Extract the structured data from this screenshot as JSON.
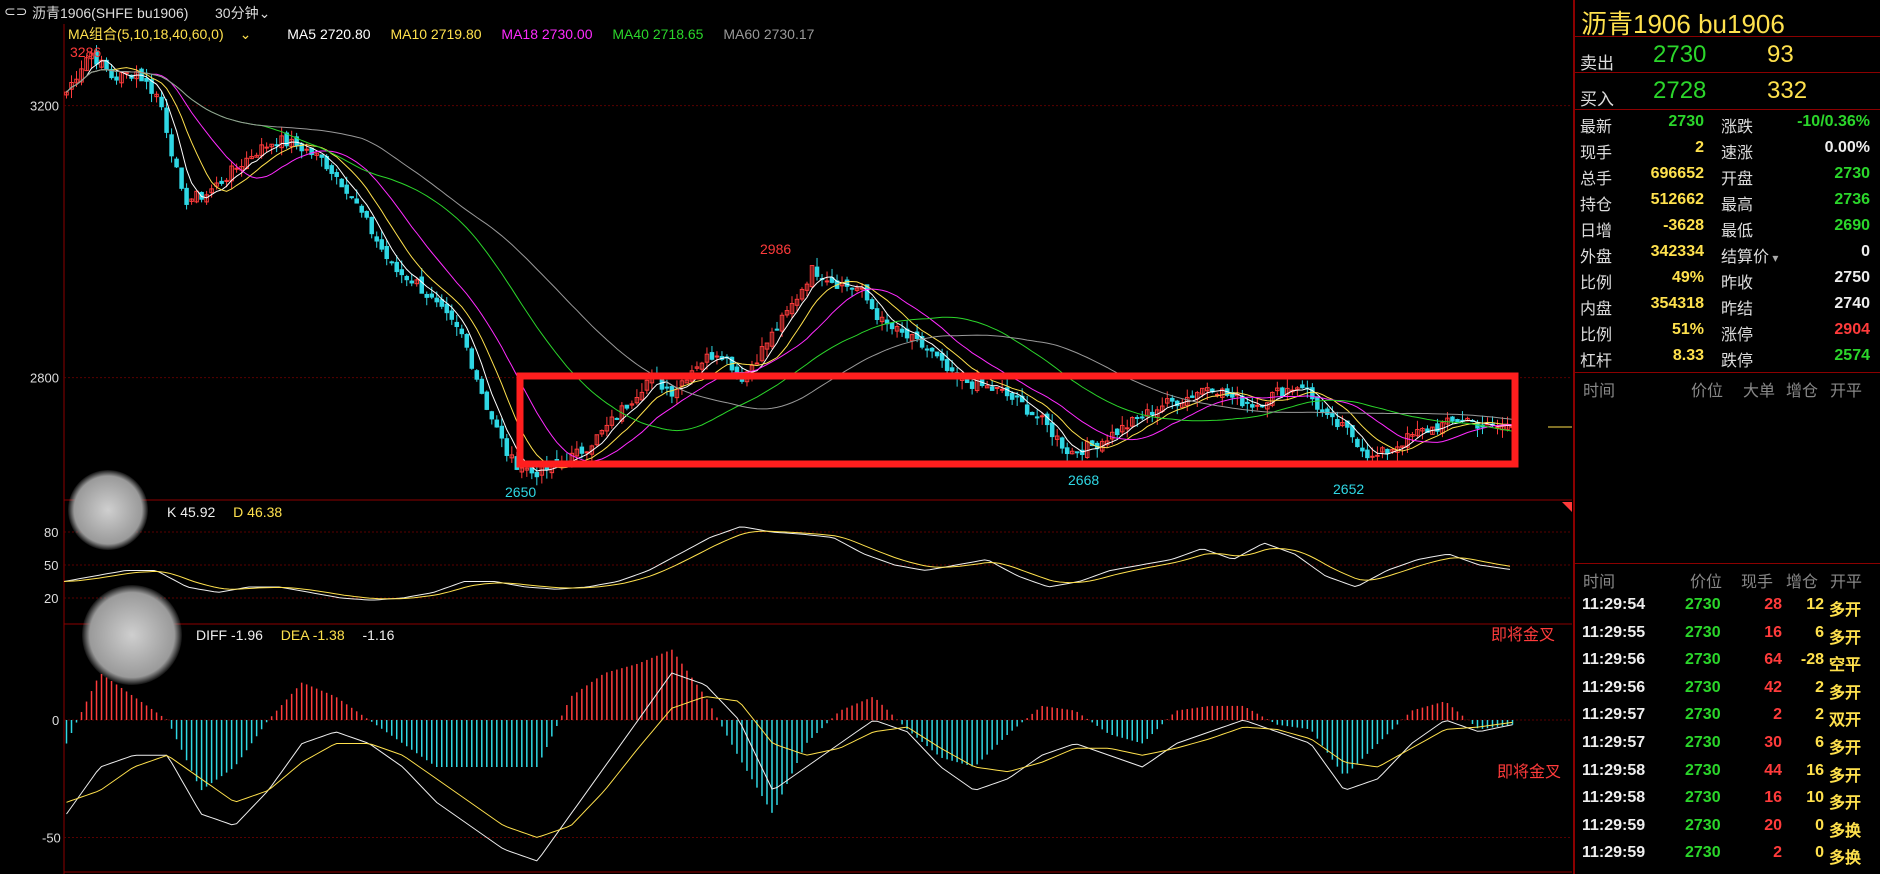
{
  "window": {
    "title": "沥青1906(SHFE bu1906)",
    "period": "30分钟"
  },
  "ma_legend": {
    "name": "MA组合(5,10,18,40,60,0)",
    "items": [
      {
        "label": "MA5 2720.80",
        "color": "#ffffff"
      },
      {
        "label": "MA10 2719.80",
        "color": "#ffe14d"
      },
      {
        "label": "MA18 2730.00",
        "color": "#ff2bff"
      },
      {
        "label": "MA40 2718.65",
        "color": "#2bd62b"
      },
      {
        "label": "MA60 2730.17",
        "color": "#999999"
      }
    ]
  },
  "kdj_legend": {
    "k": "K 45.92",
    "d": "D 46.38"
  },
  "macd_legend": {
    "diff": "DIFF -1.96",
    "dea": "DEA -1.38",
    "macd": "-1.16"
  },
  "axis": {
    "price_ticks": [
      "3200",
      "2800"
    ],
    "kd_ticks": [
      "80",
      "50",
      "20"
    ],
    "macd_ticks": [
      "0",
      "-50"
    ]
  },
  "annotations": {
    "high1": "3286",
    "high2": "2986",
    "low1": "2650",
    "low2": "2668",
    "low3": "2652",
    "signal_kd": "即将金叉",
    "signal_macd": "即将金叉"
  },
  "chart_data": {
    "type": "candlestick",
    "y_range": [
      2620,
      3320
    ],
    "key_points": [
      {
        "label": "3286",
        "price": 3286
      },
      {
        "label": "2986",
        "price": 2986
      },
      {
        "label": "2650",
        "price": 2650
      },
      {
        "label": "2668",
        "price": 2668
      },
      {
        "label": "2652",
        "price": 2652
      }
    ],
    "close_path": [
      3220,
      3280,
      3240,
      3250,
      3210,
      3060,
      3070,
      3100,
      3130,
      3150,
      3140,
      3120,
      3080,
      3020,
      2960,
      2940,
      2900,
      2860,
      2760,
      2680,
      2660,
      2670,
      2690,
      2720,
      2760,
      2800,
      2780,
      2820,
      2840,
      2800,
      2850,
      2900,
      2960,
      2940,
      2930,
      2880,
      2860,
      2840,
      2800,
      2790,
      2780,
      2760,
      2730,
      2690,
      2700,
      2720,
      2740,
      2760,
      2770,
      2790,
      2770,
      2760,
      2780,
      2790,
      2740,
      2720,
      2680,
      2700,
      2720,
      2730,
      2740,
      2725,
      2730
    ],
    "kd_path": [
      35,
      40,
      45,
      45,
      30,
      25,
      30,
      30,
      25,
      20,
      18,
      20,
      25,
      35,
      35,
      30,
      28,
      30,
      35,
      45,
      60,
      75,
      85,
      80,
      78,
      75,
      60,
      50,
      45,
      50,
      55,
      40,
      30,
      35,
      45,
      50,
      55,
      65,
      55,
      70,
      60,
      40,
      30,
      45,
      55,
      60,
      50,
      46
    ],
    "macd_diff_path": [
      -40,
      -20,
      -15,
      -15,
      -40,
      -45,
      -30,
      -10,
      -5,
      -10,
      -20,
      -35,
      -45,
      -55,
      -60,
      -40,
      -20,
      0,
      20,
      15,
      0,
      -30,
      -20,
      -10,
      0,
      -5,
      -20,
      -30,
      -25,
      -15,
      -10,
      -15,
      -20,
      -10,
      -5,
      0,
      -5,
      -10,
      -30,
      -25,
      -10,
      0,
      -5,
      -2
    ],
    "macd_dea_path": [
      -35,
      -30,
      -20,
      -15,
      -25,
      -35,
      -30,
      -18,
      -10,
      -10,
      -15,
      -25,
      -35,
      -45,
      -50,
      -45,
      -30,
      -12,
      5,
      10,
      8,
      -10,
      -15,
      -12,
      -5,
      -3,
      -12,
      -20,
      -22,
      -18,
      -12,
      -12,
      -15,
      -12,
      -8,
      -3,
      -4,
      -8,
      -18,
      -20,
      -12,
      -4,
      -3,
      -1
    ]
  },
  "side": {
    "title": "沥青1906  bu1906",
    "ask": {
      "label": "卖出",
      "price": "2730",
      "vol": "93"
    },
    "bid": {
      "label": "买入",
      "price": "2728",
      "vol": "332"
    },
    "stats": [
      {
        "l1": "最新",
        "v1": "2730",
        "c1": "g",
        "l2": "涨跌",
        "v2": "-10/0.36%",
        "c2": "g"
      },
      {
        "l1": "现手",
        "v1": "2",
        "c1": "y",
        "l2": "速涨",
        "v2": "0.00%",
        "c2": "w"
      },
      {
        "l1": "总手",
        "v1": "696652",
        "c1": "y",
        "l2": "开盘",
        "v2": "2730",
        "c2": "g"
      },
      {
        "l1": "持仓",
        "v1": "512662",
        "c1": "y",
        "l2": "最高",
        "v2": "2736",
        "c2": "g"
      },
      {
        "l1": "日增",
        "v1": "-3628",
        "c1": "y",
        "l2": "最低",
        "v2": "2690",
        "c2": "g"
      },
      {
        "l1": "外盘",
        "v1": "342334",
        "c1": "y",
        "l2": "结算价",
        "v2": "0",
        "c2": "w"
      },
      {
        "l1": "比例",
        "v1": "49%",
        "c1": "y",
        "l2": "昨收",
        "v2": "2750",
        "c2": "w"
      },
      {
        "l1": "内盘",
        "v1": "354318",
        "c1": "y",
        "l2": "昨结",
        "v2": "2740",
        "c2": "w"
      },
      {
        "l1": "比例",
        "v1": "51%",
        "c1": "y",
        "l2": "涨停",
        "v2": "2904",
        "c2": "r"
      },
      {
        "l1": "杠杆",
        "v1": "8.33",
        "c1": "y",
        "l2": "跌停",
        "v2": "2574",
        "c2": "g"
      }
    ],
    "big_header": [
      "时间",
      "价位",
      "大单",
      "增仓",
      "开平"
    ],
    "tick_header": [
      "时间",
      "价位",
      "现手",
      "增仓",
      "开平"
    ],
    "ticks": [
      {
        "time": "11:29:54",
        "price": "2730",
        "vol": "28",
        "inc": "12",
        "type": "多开",
        "vc": "r",
        "ic": "y",
        "tc": "y"
      },
      {
        "time": "11:29:55",
        "price": "2730",
        "vol": "16",
        "inc": "6",
        "type": "多开",
        "vc": "r",
        "ic": "y",
        "tc": "y"
      },
      {
        "time": "11:29:56",
        "price": "2730",
        "vol": "64",
        "inc": "-28",
        "type": "空平",
        "vc": "r",
        "ic": "y",
        "tc": "y"
      },
      {
        "time": "11:29:56",
        "price": "2730",
        "vol": "42",
        "inc": "2",
        "type": "多开",
        "vc": "r",
        "ic": "y",
        "tc": "y"
      },
      {
        "time": "11:29:57",
        "price": "2730",
        "vol": "2",
        "inc": "2",
        "type": "双开",
        "vc": "r",
        "ic": "y",
        "tc": "y"
      },
      {
        "time": "11:29:57",
        "price": "2730",
        "vol": "30",
        "inc": "6",
        "type": "多开",
        "vc": "r",
        "ic": "y",
        "tc": "y"
      },
      {
        "time": "11:29:58",
        "price": "2730",
        "vol": "44",
        "inc": "16",
        "type": "多开",
        "vc": "r",
        "ic": "y",
        "tc": "y"
      },
      {
        "time": "11:29:58",
        "price": "2730",
        "vol": "16",
        "inc": "10",
        "type": "多开",
        "vc": "r",
        "ic": "y",
        "tc": "y"
      },
      {
        "time": "11:29:59",
        "price": "2730",
        "vol": "20",
        "inc": "0",
        "type": "多换",
        "vc": "r",
        "ic": "y",
        "tc": "y"
      },
      {
        "time": "11:29:59",
        "price": "2730",
        "vol": "2",
        "inc": "0",
        "type": "多换",
        "vc": "r",
        "ic": "y",
        "tc": "y"
      }
    ]
  }
}
